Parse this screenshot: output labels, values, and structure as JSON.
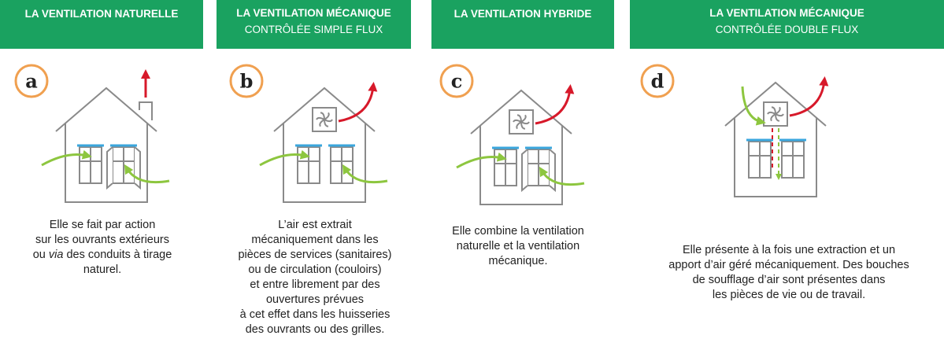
{
  "panels": [
    {
      "letter": "a",
      "title": "LA VENTILATION NATURELLE",
      "description": [
        "Elle se fait par action",
        "sur les ouvrants extérieurs",
        {
          "before": "ou",
          "em": "via",
          "after": "des conduits à tirage"
        },
        "naturel."
      ]
    },
    {
      "letter": "b",
      "title": "LA VENTILATION MÉCANIQUE",
      "subtitle": "CONTRÔLÉE SIMPLE FLUX",
      "description": [
        "L’air est extrait",
        "mécaniquement dans les",
        "pièces de services (sanitaires)",
        "ou de circulation (couloirs)",
        "et entre librement par des",
        "ouvertures prévues",
        "à cet effet dans les huisseries",
        "des ouvrants ou des grilles."
      ]
    },
    {
      "letter": "c",
      "title": "LA VENTILATION HYBRIDE",
      "description": [
        "Elle combine la ventilation",
        "naturelle et la ventilation",
        "mécanique."
      ]
    },
    {
      "letter": "d",
      "title": "LA VENTILATION MÉCANIQUE",
      "subtitle": "CONTRÔLÉE DOUBLE FLUX",
      "description": [
        "Elle présente à la fois une extraction et un",
        "apport d’air géré mécaniquement. Des bouches",
        "de soufflage d’air sont présentes dans",
        "les pièces de vie ou de travail."
      ]
    }
  ]
}
